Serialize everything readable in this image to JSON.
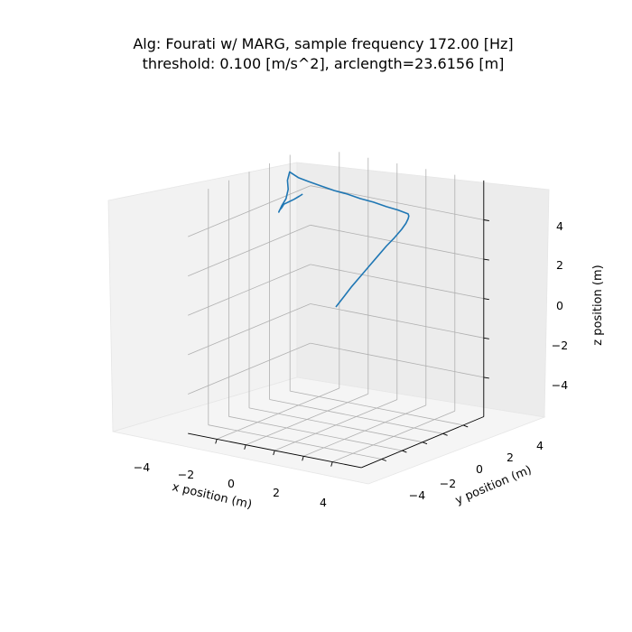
{
  "chart_data": {
    "type": "line3d",
    "title_line1": "Alg: Fourati w/ MARG, sample frequency 172.00 [Hz]",
    "title_line2": "threshold: 0.100 [m/s^2], arclength=23.6156 [m]",
    "xlabel": "x position (m)",
    "ylabel": "y position (m)",
    "zlabel": "z position (m)",
    "xlim": [
      -6,
      6
    ],
    "ylim": [
      -6,
      6
    ],
    "zlim": [
      -6,
      6
    ],
    "x_ticks": [
      -4,
      -2,
      0,
      2,
      4
    ],
    "y_ticks": [
      -4,
      -2,
      0,
      2,
      4
    ],
    "z_ticks": [
      -4,
      -2,
      0,
      2,
      4
    ],
    "x_tick_labels": [
      "−4",
      "−2",
      "0",
      "2",
      "4"
    ],
    "y_tick_labels": [
      "−4",
      "−2",
      "0",
      "2",
      "4"
    ],
    "z_tick_labels": [
      "−4",
      "−2",
      "0",
      "2",
      "4"
    ],
    "grid": true,
    "line_color": "#1f77b4",
    "series": [
      {
        "x": [
          0.0,
          0.55,
          1.1,
          1.7,
          2.3,
          2.9,
          3.5,
          4.05,
          4.55,
          4.85,
          5.0,
          5.05,
          5.0,
          4.3,
          3.5,
          2.6,
          1.7,
          0.8,
          -0.1,
          -1.0,
          -1.9,
          -2.6,
          -3.2,
          -3.35,
          -3.3,
          -3.45,
          -3.75,
          -3.95,
          -3.9,
          -3.75,
          -3.6,
          -3.2,
          -2.9,
          -2.55,
          -2.3
        ],
        "y": [
          0.0,
          0.0,
          0.0,
          0.0,
          0.0,
          0.0,
          0.0,
          0.0,
          0.0,
          0.0,
          0.0,
          0.0,
          0.0,
          0.0,
          0.0,
          0.0,
          0.0,
          0.0,
          0.0,
          0.0,
          0.0,
          0.0,
          0.0,
          0.0,
          0.0,
          0.0,
          0.0,
          0.0,
          0.0,
          0.0,
          0.0,
          0.0,
          0.0,
          0.0,
          0.0
        ],
        "z": [
          0.0,
          0.6,
          1.2,
          1.8,
          2.4,
          3.0,
          3.6,
          4.1,
          4.6,
          4.95,
          5.2,
          5.35,
          5.45,
          5.55,
          5.6,
          5.7,
          5.75,
          5.85,
          5.9,
          6.0,
          6.1,
          6.2,
          6.4,
          5.95,
          5.5,
          5.0,
          4.6,
          4.25,
          4.35,
          4.5,
          4.7,
          4.9,
          5.05,
          5.25,
          5.4
        ]
      }
    ]
  }
}
